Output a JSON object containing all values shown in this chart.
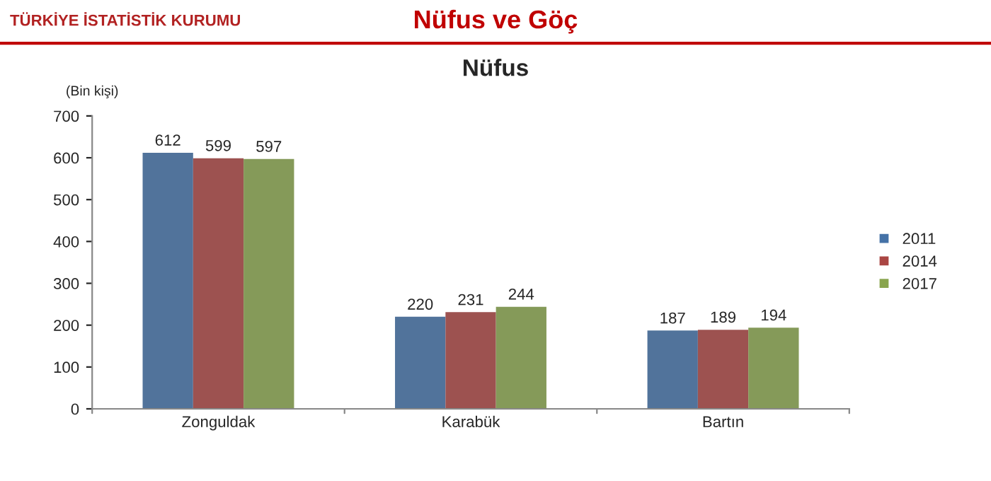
{
  "chart_data": {
    "type": "bar",
    "title": "Nüfus",
    "ylabel": "(Bin kişi)",
    "annotations": [
      "TÜRKİYE İSTATİSTİK KURUMU",
      "Nüfus ve Göç"
    ],
    "categories": [
      "Zonguldak",
      "Karabük",
      "Bartın"
    ],
    "series": [
      {
        "name": "2011",
        "color": "#4572a7",
        "values": [
          612,
          220,
          187
        ]
      },
      {
        "name": "2014",
        "color": "#aa4643",
        "values": [
          599,
          231,
          189
        ]
      },
      {
        "name": "2017",
        "color": "#89a54e",
        "values": [
          597,
          244,
          194
        ]
      }
    ],
    "ylim": [
      0,
      700
    ],
    "yticks": [
      0,
      100,
      200,
      300,
      400,
      500,
      600,
      700
    ],
    "data_labels": true,
    "legend": "right",
    "grid": false
  }
}
